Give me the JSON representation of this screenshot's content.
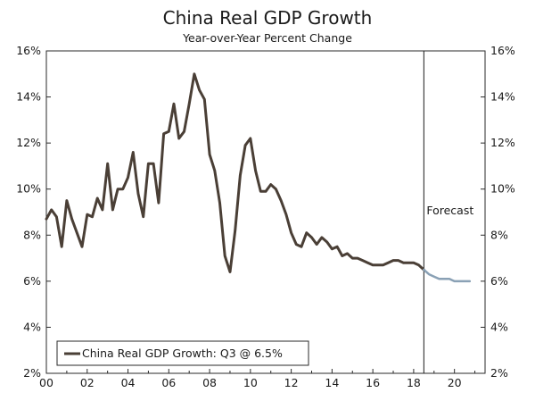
{
  "chart_data": {
    "type": "line",
    "title": "China Real GDP Growth",
    "subtitle": "Year-over-Year Percent Change",
    "xlabel": "",
    "ylabel": "",
    "xlim": [
      0,
      21.5
    ],
    "ylim": [
      2,
      16
    ],
    "x_ticks": [
      {
        "value": 0,
        "label": "00"
      },
      {
        "value": 2,
        "label": "02"
      },
      {
        "value": 4,
        "label": "04"
      },
      {
        "value": 6,
        "label": "06"
      },
      {
        "value": 8,
        "label": "08"
      },
      {
        "value": 10,
        "label": "10"
      },
      {
        "value": 12,
        "label": "12"
      },
      {
        "value": 14,
        "label": "14"
      },
      {
        "value": 16,
        "label": "16"
      },
      {
        "value": 18,
        "label": "18"
      },
      {
        "value": 20,
        "label": "20"
      }
    ],
    "y_ticks": [
      {
        "value": 2,
        "label": "2%"
      },
      {
        "value": 4,
        "label": "4%"
      },
      {
        "value": 6,
        "label": "6%"
      },
      {
        "value": 8,
        "label": "8%"
      },
      {
        "value": 10,
        "label": "10%"
      },
      {
        "value": 12,
        "label": "12%"
      },
      {
        "value": 14,
        "label": "14%"
      },
      {
        "value": 16,
        "label": "16%"
      }
    ],
    "grid": false,
    "legend_position": "bottom-left",
    "forecast_start": 18.5,
    "forecast_label": "Forecast",
    "series": [
      {
        "name": "China Real GDP Growth: Q3 @ 6.5%",
        "color": "#4a3f36",
        "x": [
          0,
          0.25,
          0.5,
          0.75,
          1,
          1.25,
          1.5,
          1.75,
          2,
          2.25,
          2.5,
          2.75,
          3,
          3.25,
          3.5,
          3.75,
          4,
          4.25,
          4.5,
          4.75,
          5,
          5.25,
          5.5,
          5.75,
          6,
          6.25,
          6.5,
          6.75,
          7,
          7.25,
          7.5,
          7.75,
          8,
          8.25,
          8.5,
          8.75,
          9,
          9.25,
          9.5,
          9.75,
          10,
          10.25,
          10.5,
          10.75,
          11,
          11.25,
          11.5,
          11.75,
          12,
          12.25,
          12.5,
          12.75,
          13,
          13.25,
          13.5,
          13.75,
          14,
          14.25,
          14.5,
          14.75,
          15,
          15.25,
          15.5,
          15.75,
          16,
          16.25,
          16.5,
          16.75,
          17,
          17.25,
          17.5,
          17.75,
          18,
          18.25,
          18.5
        ],
        "y": [
          8.7,
          9.1,
          8.8,
          7.5,
          9.5,
          8.7,
          8.1,
          7.5,
          8.9,
          8.8,
          9.6,
          9.1,
          11.1,
          9.1,
          10.0,
          10.0,
          10.5,
          11.6,
          9.8,
          8.8,
          11.1,
          11.1,
          9.4,
          12.4,
          12.5,
          13.7,
          12.2,
          12.5,
          13.7,
          15.0,
          14.3,
          13.9,
          11.5,
          10.8,
          9.4,
          7.1,
          6.4,
          8.2,
          10.6,
          11.9,
          12.2,
          10.8,
          9.9,
          9.9,
          10.2,
          10.0,
          9.5,
          8.9,
          8.1,
          7.6,
          7.5,
          8.1,
          7.9,
          7.6,
          7.9,
          7.7,
          7.4,
          7.5,
          7.1,
          7.2,
          7.0,
          7.0,
          6.9,
          6.8,
          6.7,
          6.7,
          6.7,
          6.8,
          6.9,
          6.9,
          6.8,
          6.8,
          6.8,
          6.7,
          6.5
        ]
      },
      {
        "name": "Forecast",
        "color": "#8aa1b5",
        "x": [
          18.5,
          18.75,
          19,
          19.25,
          19.5,
          19.75,
          20,
          20.25,
          20.5,
          20.75
        ],
        "y": [
          6.5,
          6.3,
          6.2,
          6.1,
          6.1,
          6.1,
          6.0,
          6.0,
          6.0,
          6.0
        ]
      }
    ]
  }
}
